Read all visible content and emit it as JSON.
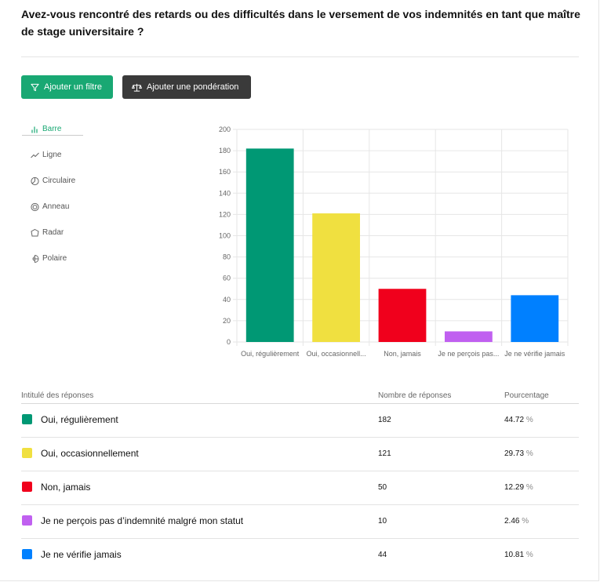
{
  "question": "Avez-vous rencontré des retards ou des difficultés dans le versement de vos indemnités en tant que maître de stage universitaire ?",
  "buttons": {
    "filter": "Ajouter un filtre",
    "weight": "Ajouter une pondération"
  },
  "chart_types": [
    {
      "label": "Barre",
      "icon": "bar-chart-icon",
      "active": true
    },
    {
      "label": "Ligne",
      "icon": "line-chart-icon",
      "active": false
    },
    {
      "label": "Circulaire",
      "icon": "pie-chart-icon",
      "active": false
    },
    {
      "label": "Anneau",
      "icon": "donut-chart-icon",
      "active": false
    },
    {
      "label": "Radar",
      "icon": "radar-chart-icon",
      "active": false
    },
    {
      "label": "Polaire",
      "icon": "polar-chart-icon",
      "active": false
    }
  ],
  "chart_data": {
    "type": "bar",
    "categories": [
      "Oui, régulièrement",
      "Oui, occasionnell...",
      "Non, jamais",
      "Je ne perçois pas...",
      "Je ne vérifie jamais"
    ],
    "values": [
      182,
      121,
      50,
      10,
      44
    ],
    "colors": [
      "#009874",
      "#f0e040",
      "#f0001c",
      "#c060f0",
      "#0080ff"
    ],
    "ylim": [
      0,
      200
    ],
    "yticks": [
      0,
      20,
      40,
      60,
      80,
      100,
      120,
      140,
      160,
      180,
      200
    ],
    "grid": true
  },
  "table": {
    "headers": {
      "label": "Intitulé des réponses",
      "count": "Nombre de réponses",
      "percent": "Pourcentage"
    },
    "percent_unit": "%",
    "rows": [
      {
        "label": "Oui, régulièrement",
        "count": "182",
        "percent": "44.72",
        "color": "#009874"
      },
      {
        "label": "Oui, occasionnellement",
        "count": "121",
        "percent": "29.73",
        "color": "#f0e040"
      },
      {
        "label": "Non, jamais",
        "count": "50",
        "percent": "12.29",
        "color": "#f0001c"
      },
      {
        "label": "Je ne perçois pas d’indemnité malgré mon statut",
        "count": "10",
        "percent": "2.46",
        "color": "#c060f0"
      },
      {
        "label": "Je ne vérifie jamais",
        "count": "44",
        "percent": "10.81",
        "color": "#0080ff"
      }
    ]
  }
}
